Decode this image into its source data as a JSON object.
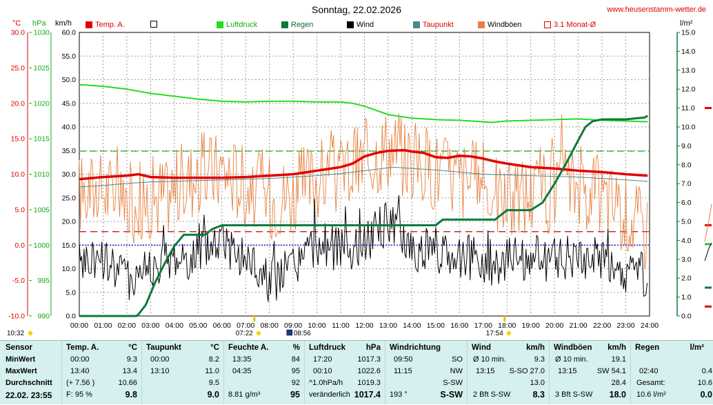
{
  "header": {
    "title": "Sonntag, 22.02.2026",
    "site": "www.heusenstamm-wetter.de"
  },
  "units": {
    "temp": "°C",
    "pressure": "hPa",
    "wind": "km/h",
    "rain": "l/m²"
  },
  "legend": [
    {
      "label": "Temp. A.",
      "color": "#e00000",
      "type": "fill"
    },
    {
      "label": "",
      "color": "#ffffff",
      "type": "box"
    },
    {
      "label": "Luftdruck",
      "color": "#22dd22",
      "type": "fill"
    },
    {
      "label": "Regen",
      "color": "#0a7a3a",
      "type": "fill"
    },
    {
      "label": "Wind",
      "color": "#000000",
      "type": "fill"
    },
    {
      "label": "Taupunkt",
      "color": "#4a8a8a",
      "type": "fill"
    },
    {
      "label": "Windböen",
      "color": "#e88040",
      "type": "fill"
    },
    {
      "label": "3.1 Monat-Ø",
      "color": "#e00000",
      "type": "box"
    }
  ],
  "chart_data": {
    "type": "line",
    "x_range": [
      "00:00",
      "24:00"
    ],
    "x_ticks": [
      "00:00",
      "01:00",
      "02:00",
      "03:00",
      "04:00",
      "05:00",
      "06:00",
      "07:00",
      "08:00",
      "09:00",
      "10:00",
      "11:00",
      "12:00",
      "13:00",
      "14:00",
      "15:00",
      "16:00",
      "17:00",
      "18:00",
      "19:00",
      "20:00",
      "21:00",
      "22:00",
      "23:00",
      "24:00"
    ],
    "axes": {
      "temp": {
        "unit": "°C",
        "range": [
          -10,
          30
        ],
        "ticks": [
          "30.0",
          "25.0",
          "20.0",
          "15.0",
          "10.0",
          "5.0",
          "0.0",
          "-5.0",
          "-10.0"
        ]
      },
      "pressure": {
        "unit": "hPa",
        "range": [
          990,
          1030
        ],
        "ticks": [
          "1030",
          "1025",
          "1020",
          "1015",
          "1010",
          "1005",
          "1000",
          "995",
          "990"
        ]
      },
      "wind": {
        "unit": "km/h",
        "range": [
          0,
          60
        ],
        "ticks": [
          "60.0",
          "55.0",
          "50.0",
          "45.0",
          "40.0",
          "35.0",
          "30.0",
          "25.0",
          "20.0",
          "15.0",
          "10.0",
          "5.0",
          "0.0"
        ]
      },
      "rain": {
        "unit": "l/m²",
        "range": [
          0,
          15
        ],
        "ticks": [
          "15.0",
          "14.0",
          "13.0",
          "12.0",
          "11.0",
          "10.0",
          "9.0",
          "8.0",
          "7.0",
          "6.0",
          "5.0",
          "4.0",
          "3.0",
          "2.0",
          "1.0",
          "0.0"
        ]
      }
    },
    "series": [
      {
        "name": "Temp. A.",
        "axis": "temp",
        "color": "#e00000",
        "points": [
          [
            0,
            9.3
          ],
          [
            1,
            9.6
          ],
          [
            2,
            9.8
          ],
          [
            2.5,
            10.0
          ],
          [
            3,
            9.6
          ],
          [
            4,
            9.5
          ],
          [
            5,
            9.5
          ],
          [
            6,
            9.5
          ],
          [
            7,
            9.6
          ],
          [
            8,
            9.8
          ],
          [
            9,
            10.0
          ],
          [
            10,
            10.5
          ],
          [
            11,
            11.0
          ],
          [
            11.5,
            11.5
          ],
          [
            12,
            12.5
          ],
          [
            12.5,
            13.0
          ],
          [
            13,
            13.3
          ],
          [
            13.67,
            13.4
          ],
          [
            14,
            13.2
          ],
          [
            14.5,
            13.0
          ],
          [
            15,
            12.4
          ],
          [
            15.5,
            12.3
          ],
          [
            16,
            12.6
          ],
          [
            16.5,
            12.5
          ],
          [
            17,
            12.2
          ],
          [
            17.5,
            11.8
          ],
          [
            18,
            11.5
          ],
          [
            19,
            11.0
          ],
          [
            20,
            10.8
          ],
          [
            21,
            10.5
          ],
          [
            22,
            10.3
          ],
          [
            23,
            10.0
          ],
          [
            23.92,
            9.8
          ]
        ]
      },
      {
        "name": "Taupunkt",
        "axis": "temp",
        "color": "#4a8a8a",
        "points": [
          [
            0,
            8.2
          ],
          [
            1,
            8.4
          ],
          [
            2,
            8.7
          ],
          [
            3,
            8.9
          ],
          [
            4,
            9.0
          ],
          [
            5,
            9.1
          ],
          [
            6,
            9.2
          ],
          [
            7,
            9.3
          ],
          [
            8,
            9.4
          ],
          [
            9,
            9.6
          ],
          [
            10,
            9.8
          ],
          [
            11,
            10.1
          ],
          [
            12,
            10.5
          ],
          [
            13,
            10.9
          ],
          [
            13.22,
            11.0
          ],
          [
            14,
            10.8
          ],
          [
            15,
            10.6
          ],
          [
            16,
            10.3
          ],
          [
            17,
            10.0
          ],
          [
            18,
            9.9
          ],
          [
            19,
            9.8
          ],
          [
            20,
            9.7
          ],
          [
            21,
            9.6
          ],
          [
            22,
            9.4
          ],
          [
            23,
            9.2
          ],
          [
            23.92,
            9.0
          ]
        ]
      },
      {
        "name": "Luftdruck",
        "axis": "pressure",
        "color": "#22dd22",
        "points": [
          [
            0,
            1022.6
          ],
          [
            0.17,
            1022.6
          ],
          [
            1,
            1022.4
          ],
          [
            2,
            1022.0
          ],
          [
            3,
            1021.4
          ],
          [
            4,
            1021.0
          ],
          [
            5,
            1020.6
          ],
          [
            6,
            1020.3
          ],
          [
            7,
            1020.2
          ],
          [
            8,
            1020.3
          ],
          [
            9,
            1020.3
          ],
          [
            10,
            1020.2
          ],
          [
            11,
            1020.2
          ],
          [
            11.5,
            1020.0
          ],
          [
            12,
            1019.6
          ],
          [
            12.5,
            1019.0
          ],
          [
            13,
            1018.4
          ],
          [
            14,
            1017.9
          ],
          [
            15,
            1017.7
          ],
          [
            16,
            1017.6
          ],
          [
            17,
            1017.4
          ],
          [
            17.33,
            1017.3
          ],
          [
            18,
            1017.5
          ],
          [
            19,
            1017.6
          ],
          [
            20,
            1017.7
          ],
          [
            21,
            1017.8
          ],
          [
            22,
            1017.6
          ],
          [
            23,
            1017.5
          ],
          [
            23.92,
            1017.4
          ]
        ]
      },
      {
        "name": "Regen",
        "axis": "rain",
        "color": "#0a7a3a",
        "points": [
          [
            0,
            0
          ],
          [
            2.4,
            0
          ],
          [
            2.5,
            0.1
          ],
          [
            2.8,
            0.6
          ],
          [
            3.2,
            1.8
          ],
          [
            3.6,
            2.8
          ],
          [
            4,
            3.7
          ],
          [
            4.4,
            4.3
          ],
          [
            5,
            4.3
          ],
          [
            5.3,
            4.3
          ],
          [
            5.6,
            4.6
          ],
          [
            6,
            4.8
          ],
          [
            12,
            4.8
          ],
          [
            15,
            4.8
          ],
          [
            15.3,
            5.1
          ],
          [
            17.5,
            5.1
          ],
          [
            18,
            5.6
          ],
          [
            19,
            5.6
          ],
          [
            19.5,
            6.0
          ],
          [
            20,
            7.0
          ],
          [
            20.5,
            8.1
          ],
          [
            21,
            9.3
          ],
          [
            21.3,
            10.0
          ],
          [
            21.6,
            10.3
          ],
          [
            22,
            10.4
          ],
          [
            23,
            10.4
          ],
          [
            23.8,
            10.5
          ],
          [
            23.92,
            10.6
          ]
        ]
      },
      {
        "name": "Wind",
        "axis": "wind",
        "color": "#000000",
        "base": [
          [
            0,
            11
          ],
          [
            1,
            12
          ],
          [
            2,
            8
          ],
          [
            3,
            10
          ],
          [
            4,
            12
          ],
          [
            5,
            13
          ],
          [
            6,
            16
          ],
          [
            7,
            12
          ],
          [
            8,
            7
          ],
          [
            9,
            10
          ],
          [
            10,
            15
          ],
          [
            11,
            14
          ],
          [
            12,
            16
          ],
          [
            13,
            20
          ],
          [
            14,
            14
          ],
          [
            15,
            14
          ],
          [
            16,
            13
          ],
          [
            17,
            11
          ],
          [
            18,
            12
          ],
          [
            19,
            12
          ],
          [
            20,
            12
          ],
          [
            21,
            12
          ],
          [
            22,
            12
          ],
          [
            23,
            9
          ],
          [
            23.92,
            8.3
          ]
        ],
        "amp": 5
      },
      {
        "name": "Windböen",
        "axis": "wind",
        "color": "#e88040",
        "base": [
          [
            0,
            26
          ],
          [
            1,
            27
          ],
          [
            2,
            24
          ],
          [
            3,
            25
          ],
          [
            4,
            27
          ],
          [
            5,
            30
          ],
          [
            6,
            31
          ],
          [
            7,
            28
          ],
          [
            8,
            25
          ],
          [
            9,
            26
          ],
          [
            10,
            29
          ],
          [
            11,
            30
          ],
          [
            12,
            33
          ],
          [
            13,
            36
          ],
          [
            14,
            33
          ],
          [
            15,
            31
          ],
          [
            16,
            29
          ],
          [
            17,
            28
          ],
          [
            18,
            24
          ],
          [
            19,
            26
          ],
          [
            20,
            26
          ],
          [
            21,
            28
          ],
          [
            22,
            25
          ],
          [
            23,
            22
          ],
          [
            23.92,
            18
          ]
        ],
        "amp": 9
      },
      {
        "name": "3.1 Monat-Ø",
        "axis": "temp",
        "color": "#c00000",
        "value": 1.9
      }
    ],
    "reference_lines": [
      {
        "axis": "pressure",
        "value": 1013.25,
        "color": "#22bb22",
        "style": "dashed"
      },
      {
        "axis": "temp",
        "value": 0,
        "color": "#0000cc",
        "style": "dotted"
      }
    ],
    "markers": {
      "sunrise": "07:22",
      "moon": "08:56",
      "sunset": "17:54",
      "left_time": "10:32"
    },
    "right_side_marks": [
      {
        "value": 11.0,
        "color": "#e00000"
      },
      {
        "value": 4.8,
        "color": "#e00000"
      },
      {
        "value": 3.8,
        "color": "#22cc22"
      },
      {
        "value": 1.5,
        "color": "#0a7a3a"
      },
      {
        "value": 0.5,
        "color": "#e00000"
      }
    ]
  },
  "table": {
    "labels": {
      "col0": "Sensor",
      "row1": "MinWert",
      "row2": "MaxWert",
      "row3": "Durchschnitt",
      "row4": "22.02. 23:55"
    },
    "temp": {
      "header": "Temp. A.",
      "unit": "°C",
      "min_time": "00:00",
      "min": "9.3",
      "max_time": "13:40",
      "max": "13.4",
      "avg_note": "(+ 7.56 )",
      "avg": "10.66",
      "cur_note": "F: 95 %",
      "cur": "9.8"
    },
    "dew": {
      "header": "Taupunkt",
      "unit": "°C",
      "min_time": "00:00",
      "min": "8.2",
      "max_time": "13:10",
      "max": "11.0",
      "avg": "9.5",
      "cur": "9.0"
    },
    "hum": {
      "header": "Feuchte A.",
      "unit": "%",
      "min_time": "13:35",
      "min": "84",
      "max_time": "04:35",
      "max": "95",
      "avg": "92",
      "cur_note": "8.81 g/m³",
      "cur": "95"
    },
    "press": {
      "header": "Luftdruck",
      "unit": "hPa",
      "min_time": "17:20",
      "min": "1017.3",
      "max_time": "00:10",
      "max": "1022.6",
      "avg_note": "^1.0hPa/h",
      "avg": "1019.3",
      "cur_note": "veränderlich",
      "cur": "1017.4"
    },
    "dir": {
      "header": "Windrichtung",
      "min_time": "09:50",
      "min": "SO",
      "max_time": "11:15",
      "max": "NW",
      "avg": "S-SW",
      "cur_note": "193 °",
      "cur": "S-SW"
    },
    "wind": {
      "header": "Wind",
      "unit": "km/h",
      "min_note": "Ø 10 min.",
      "min": "9.3",
      "max_time": "13:15",
      "max": "S-SO 27.0",
      "avg": "13.0",
      "cur_note": "2 Bft S-SW",
      "cur": "8.3"
    },
    "gust": {
      "header": "Windböen",
      "unit": "km/h",
      "min_note": "Ø 10 min.",
      "min": "19.1",
      "max_time": "13:15",
      "max": "SW 54.1",
      "avg": "28.4",
      "cur_note": "3 Bft S-SW",
      "cur": "18.0"
    },
    "rain": {
      "header": "Regen",
      "unit": "l/m²",
      "max_time": "02:40",
      "max": "0.4",
      "avg_note": "Gesamt:",
      "avg": "10.6",
      "cur_note": "10.6 l/m²",
      "cur": "0.0"
    }
  }
}
